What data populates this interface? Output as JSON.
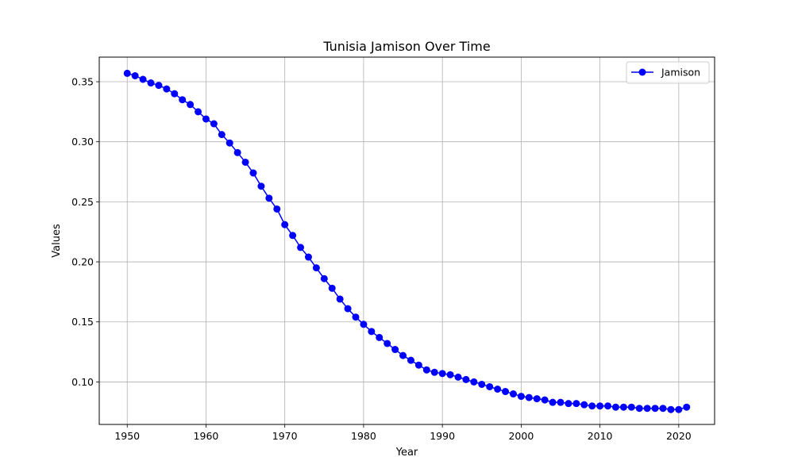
{
  "chart_data": {
    "type": "line",
    "title": "Tunisia Jamison Over Time",
    "xlabel": "Year",
    "ylabel": "Values",
    "xlim": [
      1946.45,
      2024.55
    ],
    "ylim": [
      0.0646,
      0.3705
    ],
    "xticks": [
      1950,
      1960,
      1970,
      1980,
      1990,
      2000,
      2010,
      2020
    ],
    "yticks": [
      0.1,
      0.15,
      0.2,
      0.25,
      0.3,
      0.35
    ],
    "ytick_labels": [
      "0.10",
      "0.15",
      "0.20",
      "0.25",
      "0.30",
      "0.35"
    ],
    "grid": true,
    "legend_position": "top-right",
    "series": [
      {
        "name": "Jamison",
        "color": "#0000ff",
        "marker": "circle",
        "x": [
          1950,
          1951,
          1952,
          1953,
          1954,
          1955,
          1956,
          1957,
          1958,
          1959,
          1960,
          1961,
          1962,
          1963,
          1964,
          1965,
          1966,
          1967,
          1968,
          1969,
          1970,
          1971,
          1972,
          1973,
          1974,
          1975,
          1976,
          1977,
          1978,
          1979,
          1980,
          1981,
          1982,
          1983,
          1984,
          1985,
          1986,
          1987,
          1988,
          1989,
          1990,
          1991,
          1992,
          1993,
          1994,
          1995,
          1996,
          1997,
          1998,
          1999,
          2000,
          2001,
          2002,
          2003,
          2004,
          2005,
          2006,
          2007,
          2008,
          2009,
          2010,
          2011,
          2012,
          2013,
          2014,
          2015,
          2016,
          2017,
          2018,
          2019,
          2020,
          2021
        ],
        "y": [
          0.357,
          0.355,
          0.352,
          0.349,
          0.347,
          0.344,
          0.34,
          0.335,
          0.331,
          0.325,
          0.319,
          0.315,
          0.306,
          0.299,
          0.291,
          0.283,
          0.274,
          0.263,
          0.253,
          0.244,
          0.231,
          0.222,
          0.212,
          0.204,
          0.195,
          0.186,
          0.178,
          0.169,
          0.161,
          0.154,
          0.148,
          0.142,
          0.137,
          0.132,
          0.127,
          0.122,
          0.118,
          0.114,
          0.11,
          0.108,
          0.107,
          0.106,
          0.104,
          0.102,
          0.1,
          0.098,
          0.096,
          0.094,
          0.092,
          0.09,
          0.088,
          0.087,
          0.086,
          0.085,
          0.083,
          0.083,
          0.082,
          0.082,
          0.081,
          0.08,
          0.08,
          0.08,
          0.079,
          0.079,
          0.079,
          0.078,
          0.078,
          0.078,
          0.078,
          0.077,
          0.077,
          0.079
        ]
      }
    ]
  }
}
